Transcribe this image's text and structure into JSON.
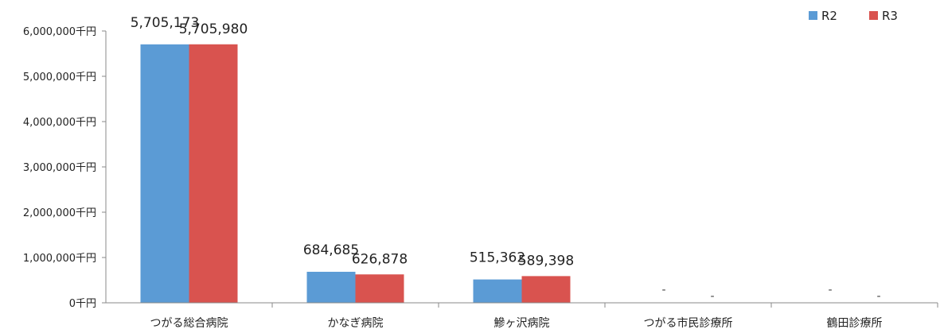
{
  "chart_data": {
    "type": "bar",
    "title": "",
    "ylim": [
      0,
      6000000
    ],
    "y_ticks": [
      {
        "value": 0,
        "label": "0千円"
      },
      {
        "value": 1000000,
        "label": "1,000,000千円"
      },
      {
        "value": 2000000,
        "label": "2,000,000千円"
      },
      {
        "value": 3000000,
        "label": "3,000,000千円"
      },
      {
        "value": 4000000,
        "label": "4,000,000千円"
      },
      {
        "value": 5000000,
        "label": "5,000,000千円"
      },
      {
        "value": 6000000,
        "label": "6,000,000千円"
      }
    ],
    "categories": [
      "つがる総合病院",
      "かなぎ病院",
      "鰺ヶ沢病院",
      "つがる市民診療所",
      "鶴田診療所"
    ],
    "series": [
      {
        "name": "R2",
        "color": "#5b9bd5",
        "values": [
          5705173,
          684685,
          515362,
          null,
          null
        ],
        "labels": [
          "5,705,173",
          "684,685",
          "515,362",
          "-",
          "-"
        ]
      },
      {
        "name": "R3",
        "color": "#d9534f",
        "values": [
          5705980,
          626878,
          589398,
          null,
          null
        ],
        "labels": [
          "5,705,980",
          "626,878",
          "589,398",
          "-",
          "-"
        ]
      }
    ],
    "legend_position": "top-right"
  }
}
